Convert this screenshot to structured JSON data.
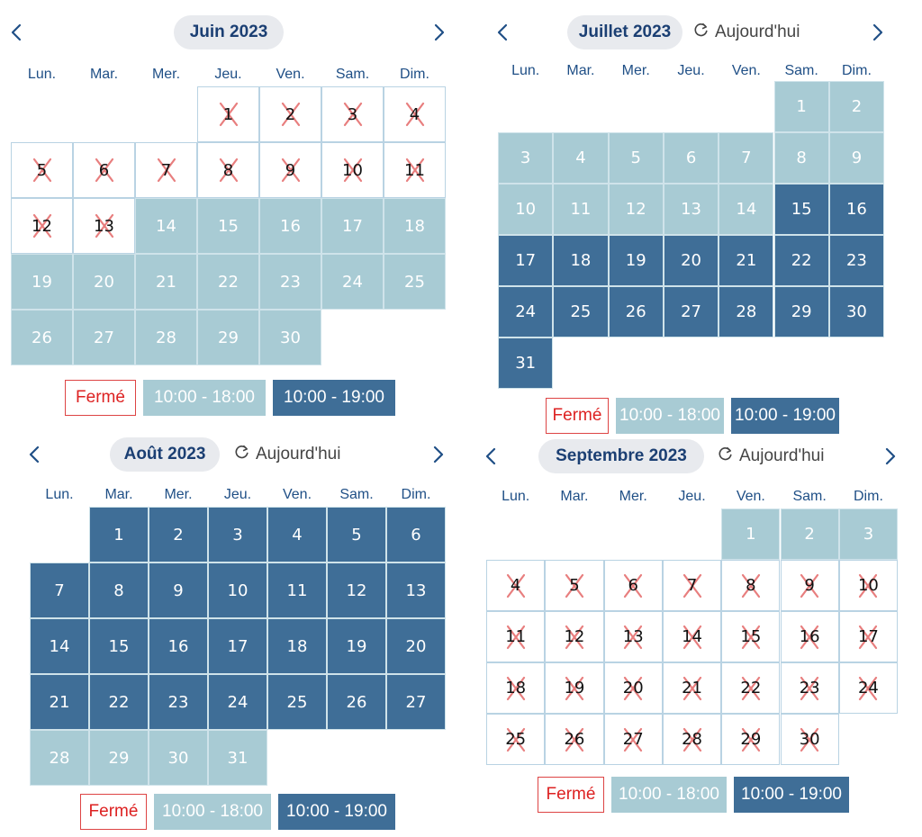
{
  "weekdays": [
    "Lun.",
    "Mar.",
    "Mer.",
    "Jeu.",
    "Ven.",
    "Sam.",
    "Dim."
  ],
  "today_label": "Aujourd'hui",
  "legend": {
    "closed": "Fermé",
    "light": "10:00 - 18:00",
    "dark": "10:00 - 19:00"
  },
  "colors": {
    "closed_border": "#d44444",
    "light": "#a8cbd4",
    "dark": "#3f6e97",
    "accent": "#1b3f73"
  },
  "calendars": [
    {
      "month": "Juin 2023",
      "show_today": false,
      "days": [
        "c",
        "c",
        "c",
        "c",
        "c",
        "c",
        "c",
        "c",
        "c",
        "c",
        "c",
        "c",
        "c",
        "l",
        "l",
        "l",
        "l",
        "l",
        "l",
        "l",
        "l",
        "l",
        "l",
        "l",
        "l",
        "l",
        "l",
        "l",
        "l",
        "l"
      ]
    },
    {
      "month": "Juillet 2023",
      "show_today": true,
      "days": [
        "l",
        "l",
        "l",
        "l",
        "l",
        "l",
        "l",
        "l",
        "l",
        "l",
        "l",
        "l",
        "l",
        "l",
        "d",
        "d",
        "d",
        "d",
        "d",
        "d",
        "d",
        "d",
        "d",
        "d",
        "d",
        "d",
        "d",
        "d",
        "d",
        "d",
        "d"
      ]
    },
    {
      "month": "Août 2023",
      "show_today": true,
      "days": [
        "d",
        "d",
        "d",
        "d",
        "d",
        "d",
        "d",
        "d",
        "d",
        "d",
        "d",
        "d",
        "d",
        "d",
        "d",
        "d",
        "d",
        "d",
        "d",
        "d",
        "d",
        "d",
        "d",
        "d",
        "d",
        "d",
        "d",
        "l",
        "l",
        "l",
        "l"
      ]
    },
    {
      "month": "Septembre 2023",
      "show_today": true,
      "days": [
        "l",
        "l",
        "l",
        "c",
        "c",
        "c",
        "c",
        "c",
        "c",
        "c",
        "c",
        "c",
        "c",
        "c",
        "c",
        "c",
        "c",
        "c",
        "c",
        "c",
        "c",
        "c",
        "c",
        "c",
        "c",
        "c",
        "c",
        "c",
        "c",
        "c"
      ]
    }
  ]
}
